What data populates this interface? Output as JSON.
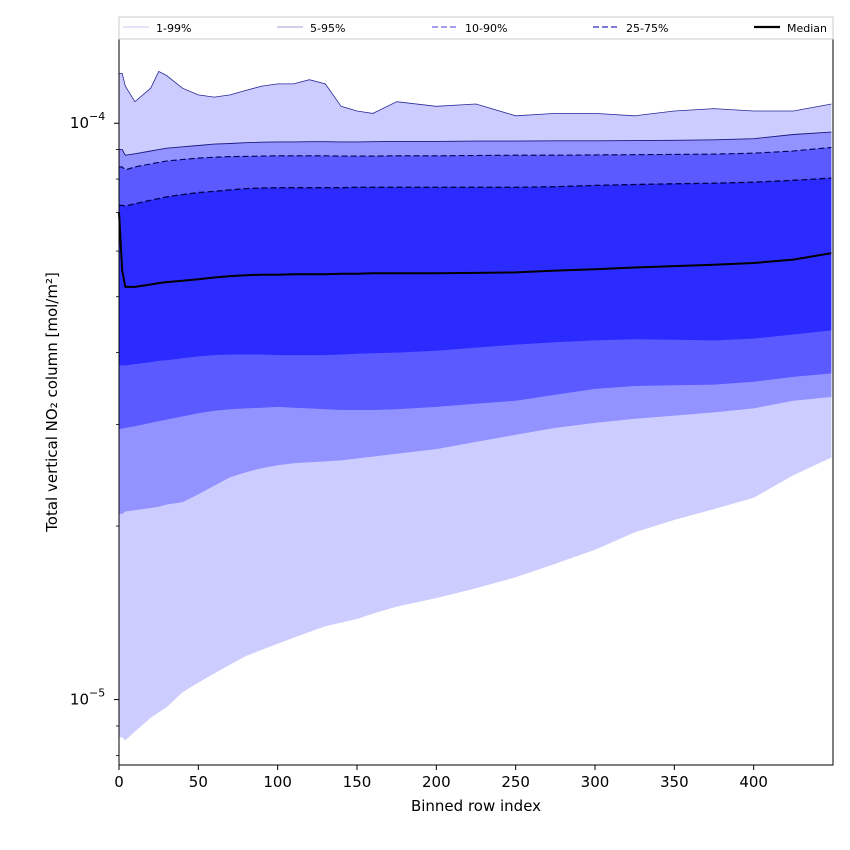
{
  "chart_data": {
    "type": "area",
    "title": "",
    "xlabel": "Binned row index",
    "ylabel": "Total vertical NO₂ column [mol/m²]",
    "yscale": "log",
    "xlim": [
      0,
      450
    ],
    "ylim": [
      7.7e-06,
      0.00014
    ],
    "grid": false,
    "legend_placement": "top",
    "x_ticks": [
      {
        "value": 0,
        "label": "0"
      },
      {
        "value": 50,
        "label": "50"
      },
      {
        "value": 100,
        "label": "100"
      },
      {
        "value": 150,
        "label": "150"
      },
      {
        "value": 200,
        "label": "200"
      },
      {
        "value": 250,
        "label": "250"
      },
      {
        "value": 300,
        "label": "300"
      },
      {
        "value": 350,
        "label": "350"
      },
      {
        "value": 400,
        "label": "400"
      }
    ],
    "y_ticks": [
      {
        "value": 1e-05,
        "label": "10",
        "exp": "−5"
      },
      {
        "value": 0.0001,
        "label": "10",
        "exp": "−4"
      }
    ],
    "x": [
      0,
      2,
      4,
      10,
      20,
      25,
      30,
      40,
      50,
      60,
      70,
      80,
      90,
      100,
      110,
      120,
      130,
      140,
      150,
      160,
      175,
      200,
      225,
      250,
      275,
      300,
      325,
      350,
      375,
      400,
      425,
      449
    ],
    "bands": [
      {
        "name": "1-99%",
        "color": "#ccccff",
        "line_color": "#ccccff",
        "dash": "",
        "lower": [
          8.6e-06,
          8.6e-06,
          8.5e-06,
          8.8e-06,
          9.3e-06,
          9.5e-06,
          9.7e-06,
          1.03e-05,
          1.07e-05,
          1.11e-05,
          1.15e-05,
          1.19e-05,
          1.22e-05,
          1.25e-05,
          1.28e-05,
          1.31e-05,
          1.34e-05,
          1.36e-05,
          1.38e-05,
          1.41e-05,
          1.45e-05,
          1.5e-05,
          1.56e-05,
          1.63e-05,
          1.72e-05,
          1.82e-05,
          1.95e-05,
          2.05e-05,
          2.14e-05,
          2.24e-05,
          2.45e-05,
          2.63e-05
        ],
        "upper": [
          0.000122,
          0.000122,
          0.000116,
          0.000109,
          0.000115,
          0.000123,
          0.000121,
          0.000115,
          0.000112,
          0.000111,
          0.000112,
          0.000114,
          0.000116,
          0.000117,
          0.000117,
          0.000119,
          0.000117,
          0.000107,
          0.000105,
          0.000104,
          0.000109,
          0.000107,
          0.000108,
          0.000103,
          0.000104,
          0.000104,
          0.000103,
          0.000105,
          0.000106,
          0.000105,
          0.000105,
          0.000108
        ]
      },
      {
        "name": "5-95%",
        "color": "#9393ff",
        "line_color": "#3333cc",
        "dash": "",
        "lower": [
          2.1e-05,
          2.1e-05,
          2.12e-05,
          2.13e-05,
          2.15e-05,
          2.16e-05,
          2.18e-05,
          2.2e-05,
          2.27e-05,
          2.35e-05,
          2.43e-05,
          2.48e-05,
          2.52e-05,
          2.55e-05,
          2.57e-05,
          2.58e-05,
          2.59e-05,
          2.6e-05,
          2.62e-05,
          2.64e-05,
          2.67e-05,
          2.72e-05,
          2.8e-05,
          2.88e-05,
          2.96e-05,
          3.02e-05,
          3.07e-05,
          3.11e-05,
          3.15e-05,
          3.2e-05,
          3.3e-05,
          3.35e-05
        ]
      },
      {
        "name": "10-90%",
        "color": "#5a5aff",
        "line_color": "#000066",
        "dash": "6,3",
        "lower": [
          2.95e-05,
          2.95e-05,
          2.96e-05,
          2.98e-05,
          3.02e-05,
          3.04e-05,
          3.06e-05,
          3.1e-05,
          3.14e-05,
          3.17e-05,
          3.19e-05,
          3.2e-05,
          3.21e-05,
          3.22e-05,
          3.21e-05,
          3.2e-05,
          3.19e-05,
          3.18e-05,
          3.18e-05,
          3.18e-05,
          3.19e-05,
          3.22e-05,
          3.26e-05,
          3.3e-05,
          3.38e-05,
          3.46e-05,
          3.5e-05,
          3.51e-05,
          3.52e-05,
          3.56e-05,
          3.63e-05,
          3.68e-05
        ],
        "upper": [
          9e-05,
          9e-05,
          8.8e-05,
          8.85e-05,
          8.95e-05,
          9e-05,
          9.05e-05,
          9.1e-05,
          9.15e-05,
          9.2e-05,
          9.22e-05,
          9.25e-05,
          9.27e-05,
          9.28e-05,
          9.28e-05,
          9.29e-05,
          9.29e-05,
          9.28e-05,
          9.28e-05,
          9.29e-05,
          9.3e-05,
          9.3e-05,
          9.31e-05,
          9.31e-05,
          9.32e-05,
          9.32e-05,
          9.33e-05,
          9.34e-05,
          9.36e-05,
          9.4e-05,
          9.56e-05,
          9.65e-05
        ]
      },
      {
        "name": "25-75%",
        "color": "#2b2bff",
        "line_color": "#00004d",
        "dash": "6,3",
        "lower": [
          3.8e-05,
          3.8e-05,
          3.8e-05,
          3.82e-05,
          3.85e-05,
          3.87e-05,
          3.88e-05,
          3.91e-05,
          3.94e-05,
          3.96e-05,
          3.97e-05,
          3.97e-05,
          3.97e-05,
          3.96e-05,
          3.96e-05,
          3.96e-05,
          3.96e-05,
          3.97e-05,
          3.98e-05,
          3.99e-05,
          4e-05,
          4.03e-05,
          4.08e-05,
          4.13e-05,
          4.17e-05,
          4.2e-05,
          4.22e-05,
          4.21e-05,
          4.2e-05,
          4.23e-05,
          4.3e-05,
          4.37e-05
        ],
        "upper": [
          8.4e-05,
          8.4e-05,
          8.3e-05,
          8.4e-05,
          8.5e-05,
          8.55e-05,
          8.6e-05,
          8.65e-05,
          8.7e-05,
          8.73e-05,
          8.75e-05,
          8.76e-05,
          8.77e-05,
          8.78e-05,
          8.78e-05,
          8.78e-05,
          8.78e-05,
          8.77e-05,
          8.77e-05,
          8.77e-05,
          8.78e-05,
          8.78e-05,
          8.79e-05,
          8.8e-05,
          8.8e-05,
          8.81e-05,
          8.82e-05,
          8.83e-05,
          8.84e-05,
          8.87e-05,
          8.95e-05,
          9.08e-05
        ]
      }
    ],
    "inner_lines": [
      {
        "name": "25-75% upper",
        "color": "#00004d",
        "dash": "6,3",
        "values": [
          7.2e-05,
          7.2e-05,
          7.18e-05,
          7.25e-05,
          7.35e-05,
          7.4e-05,
          7.45e-05,
          7.52e-05,
          7.58e-05,
          7.62e-05,
          7.66e-05,
          7.7e-05,
          7.72e-05,
          7.73e-05,
          7.73e-05,
          7.73e-05,
          7.73e-05,
          7.73e-05,
          7.74e-05,
          7.74e-05,
          7.74e-05,
          7.74e-05,
          7.74e-05,
          7.74e-05,
          7.76e-05,
          7.8e-05,
          7.83e-05,
          7.85e-05,
          7.87e-05,
          7.9e-05,
          7.96e-05,
          8.03e-05
        ]
      }
    ],
    "median": {
      "name": "Median",
      "color": "#000000",
      "values": [
        7e-05,
        5.55e-05,
        5.2e-05,
        5.2e-05,
        5.25e-05,
        5.28e-05,
        5.3e-05,
        5.33e-05,
        5.36e-05,
        5.4e-05,
        5.43e-05,
        5.45e-05,
        5.46e-05,
        5.46e-05,
        5.47e-05,
        5.47e-05,
        5.47e-05,
        5.48e-05,
        5.48e-05,
        5.49e-05,
        5.49e-05,
        5.49e-05,
        5.5e-05,
        5.51e-05,
        5.55e-05,
        5.58e-05,
        5.62e-05,
        5.65e-05,
        5.68e-05,
        5.72e-05,
        5.8e-05,
        5.95e-05
      ]
    },
    "legend": [
      {
        "label": "1-99%",
        "color": "#c8c8ee",
        "dash": "",
        "width": 1
      },
      {
        "label": "5-95%",
        "color": "#a0a0d8",
        "dash": "",
        "width": 1
      },
      {
        "label": "10-90%",
        "color": "#8080e0",
        "dash": "6,3",
        "width": 1.5
      },
      {
        "label": "25-75%",
        "color": "#5050c8",
        "dash": "6,3",
        "width": 1.5
      },
      {
        "label": "Median",
        "color": "#000000",
        "dash": "",
        "width": 2.2
      }
    ]
  }
}
